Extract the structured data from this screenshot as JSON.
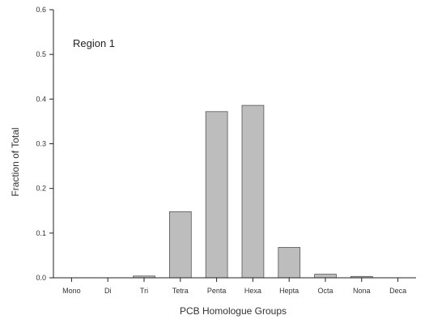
{
  "chart_data": {
    "type": "bar",
    "categories": [
      "Mono",
      "Di",
      "Tri",
      "Tetra",
      "Penta",
      "Hexa",
      "Hepta",
      "Octa",
      "Nona",
      "Deca"
    ],
    "values": [
      0.0,
      0.0,
      0.004,
      0.148,
      0.372,
      0.386,
      0.068,
      0.008,
      0.003,
      0.0
    ],
    "xlabel": "PCB Homologue Groups",
    "ylabel": "Fraction of Total",
    "annotation": "Region 1",
    "ylim": [
      0,
      0.6
    ],
    "yticks": [
      "0.0",
      "0.1",
      "0.2",
      "0.3",
      "0.4",
      "0.5",
      "0.6"
    ],
    "grid": false,
    "colors": {
      "bar_fill": "#bdbdbd",
      "bar_stroke": "#555555",
      "axis": "#222222"
    }
  }
}
